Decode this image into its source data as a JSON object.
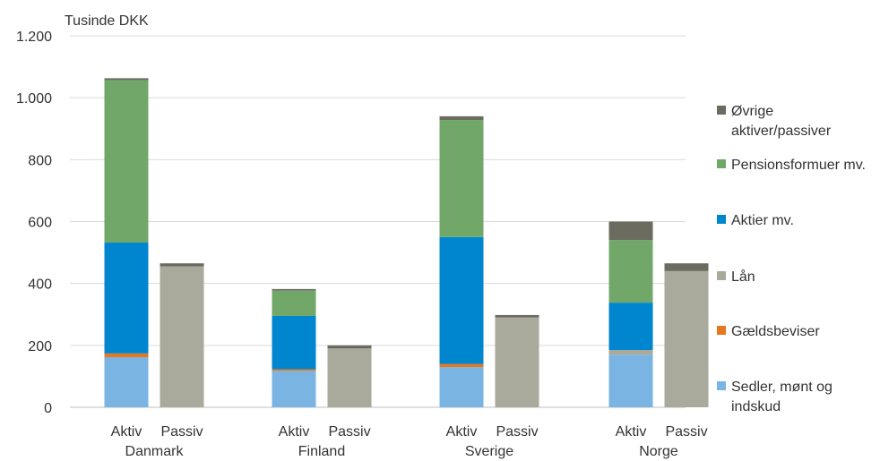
{
  "chart_data": {
    "type": "bar",
    "stacked": true,
    "ylabel": "Tusinde DKK",
    "ylim": [
      0,
      1200
    ],
    "yticks": [
      0,
      200,
      400,
      600,
      800,
      1000,
      1200
    ],
    "ytick_labels": [
      "0",
      "200",
      "400",
      "600",
      "800",
      "1.000",
      "1.200"
    ],
    "grid": "horizontal",
    "legend_position": "right",
    "groups": [
      {
        "name": "Danmark",
        "bars": [
          {
            "label": "Aktiv",
            "values": [
              162,
              12,
              0,
              358,
              525,
              6
            ]
          },
          {
            "label": "Passiv",
            "values": [
              0,
              0,
              455,
              0,
              0,
              10
            ]
          }
        ]
      },
      {
        "name": "Finland",
        "bars": [
          {
            "label": "Aktiv",
            "values": [
              118,
              5,
              0,
              172,
              82,
              5
            ]
          },
          {
            "label": "Passiv",
            "values": [
              0,
              0,
              190,
              0,
              0,
              10
            ]
          }
        ]
      },
      {
        "name": "Sverige",
        "bars": [
          {
            "label": "Aktiv",
            "values": [
              130,
              10,
              0,
              410,
              378,
              12
            ]
          },
          {
            "label": "Passiv",
            "values": [
              0,
              0,
              290,
              0,
              0,
              8
            ]
          }
        ]
      },
      {
        "name": "Norge",
        "bars": [
          {
            "label": "Aktiv",
            "values": [
              170,
              0,
              15,
              153,
              202,
              60
            ]
          },
          {
            "label": "Passiv",
            "values": [
              0,
              0,
              440,
              0,
              0,
              25
            ]
          }
        ]
      }
    ],
    "series": [
      {
        "name": "Sedler, mønt og indskud",
        "color": "#7ab4e2"
      },
      {
        "name": "Gældsbeviser",
        "color": "#e8761e"
      },
      {
        "name": "Lån",
        "color": "#a9a99c"
      },
      {
        "name": "Aktier mv.",
        "color": "#0086cf"
      },
      {
        "name": "Pensionsformuer mv.",
        "color": "#71a86a"
      },
      {
        "name": "Øvrige aktiver/passiver",
        "color": "#6b6b60"
      }
    ],
    "legend_lines": [
      [
        "Øvrige",
        "aktiver/passiver"
      ],
      [
        "Pensionsformuer mv."
      ],
      [
        "Aktier mv."
      ],
      [
        "Lån"
      ],
      [
        "Gældsbeviser"
      ],
      [
        "Sedler, mønt og",
        "indskud"
      ]
    ]
  }
}
